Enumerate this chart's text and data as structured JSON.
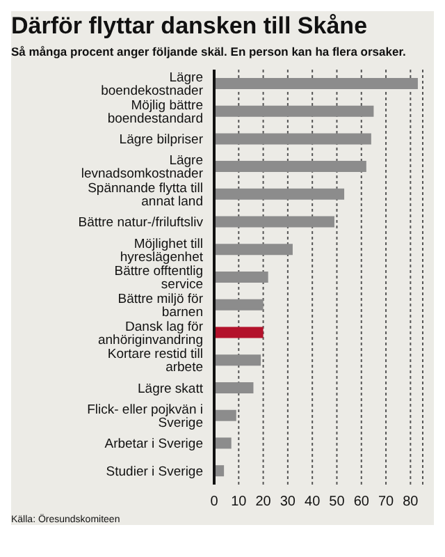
{
  "chart_data": {
    "type": "bar",
    "orientation": "horizontal",
    "title": "Därför flyttar dansken till Skåne",
    "subtitle": "Så många procent anger följande skäl. En person kan ha flera orsaker.",
    "categories": [
      "Lägre boendekostnader",
      "Möjlig bättre boendestandard",
      "Lägre bilpriser",
      "Lägre levnadsomkostnader",
      "Spännande flytta till annat land",
      "Bättre natur-/friluftsliv",
      "Möjlighet till hyreslägenhet",
      "Bättre offtentlig service",
      "Bättre miljö för barnen",
      "Dansk lag för anhöriginvandring",
      "Kortare restid till arbete",
      "Lägre skatt",
      "Flick- eller pojkvän i Sverige",
      "Arbetar i Sverige",
      "Studier i Sverige"
    ],
    "values": [
      83,
      65,
      64,
      62,
      53,
      49,
      32,
      22,
      20,
      20,
      19,
      16,
      9,
      7,
      4
    ],
    "colors": [
      "#8c8c8c",
      "#8c8c8c",
      "#8c8c8c",
      "#8c8c8c",
      "#8c8c8c",
      "#8c8c8c",
      "#8c8c8c",
      "#8c8c8c",
      "#8c8c8c",
      "#b3122b",
      "#8c8c8c",
      "#8c8c8c",
      "#8c8c8c",
      "#8c8c8c",
      "#8c8c8c"
    ],
    "xlim": [
      0,
      85
    ],
    "xticks": [
      0,
      10,
      20,
      30,
      40,
      50,
      60,
      70,
      80
    ],
    "grid": "x",
    "annotations": [
      "Källa: Öresundskomiteen"
    ]
  }
}
